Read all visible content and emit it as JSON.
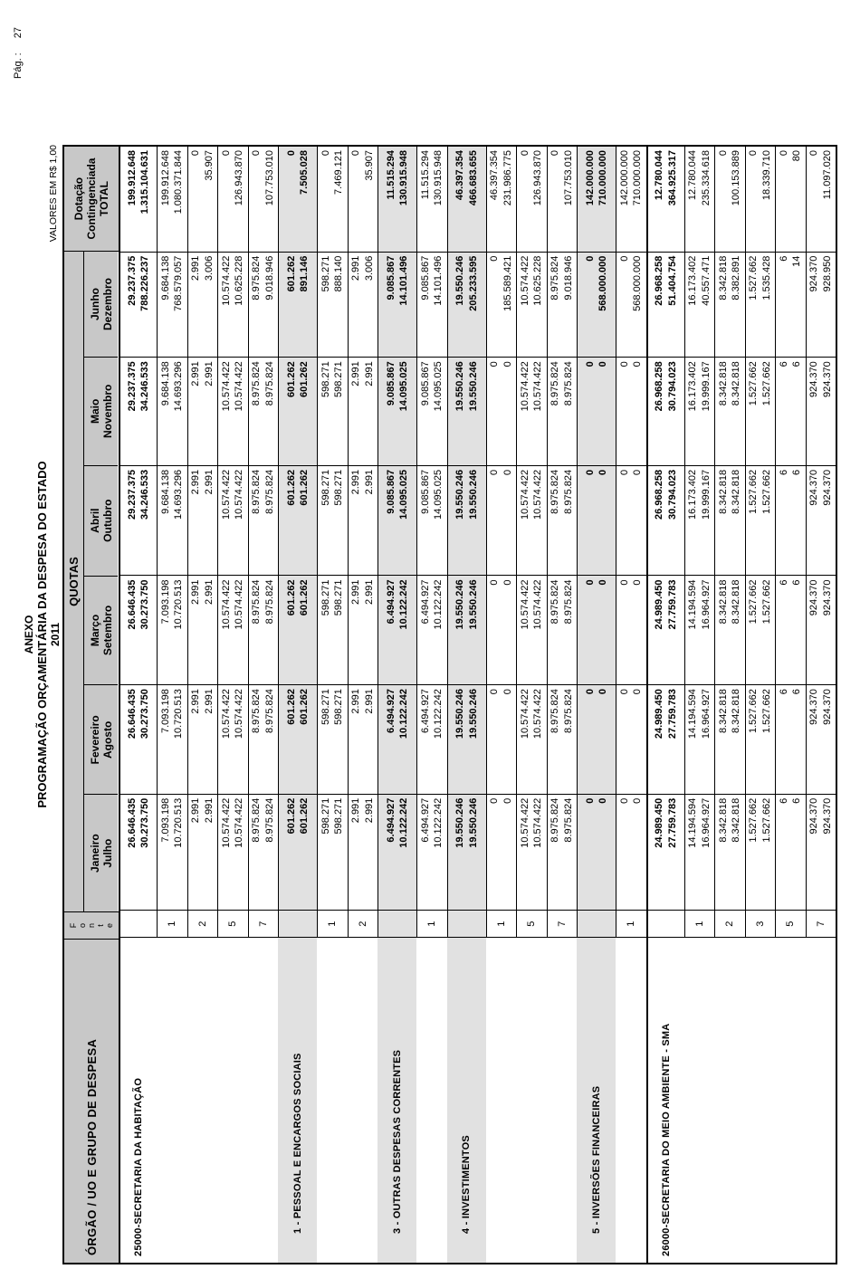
{
  "page": {
    "page_label": "Pág. :",
    "page_number": "27",
    "title1": "ANEXO",
    "title2": "PROGRAMAÇÃO ORÇAMENTÁRIA DA DESPESA DO ESTADO",
    "year": "2011",
    "values_note": "VALORES EM R$ 1,00"
  },
  "table": {
    "orgao_header": "ÓRGÃO / UO  E GRUPO DE DESPESA",
    "fonte_header_letters": [
      "F",
      "o",
      "n",
      "t",
      "e"
    ],
    "quotas_header": "QUOTAS",
    "dotacao_header_lines": [
      "Dotação",
      "Contingenciada",
      "TOTAL"
    ],
    "months": [
      [
        "Janeiro",
        "Julho"
      ],
      [
        "Fevereiro",
        "Agosto"
      ],
      [
        "Março",
        "Setembro"
      ],
      [
        "Abril",
        "Outubro"
      ],
      [
        "Maio",
        "Novembro"
      ],
      [
        "Junho",
        "Dezembro"
      ]
    ],
    "colors": {
      "header_bg": "#c8c8c8",
      "group_bg": "#e1e1e1"
    },
    "rows": [
      {
        "type": "org",
        "label": "25000-SECRETARIA DA HABITAÇÃO",
        "fonte": "",
        "cells": [
          [
            "26.646.435",
            "30.273.750"
          ],
          [
            "26.646.435",
            "30.273.750"
          ],
          [
            "26.646.435",
            "30.273.750"
          ],
          [
            "29.237.375",
            "34.246.533"
          ],
          [
            "29.237.375",
            "34.246.533"
          ],
          [
            "29.237.375",
            "788.226.237"
          ],
          [
            "199.912.648",
            "1.315.104.631"
          ]
        ]
      },
      {
        "type": "fonte",
        "label": "",
        "fonte": "1",
        "cells": [
          [
            "7.093.198",
            "10.720.513"
          ],
          [
            "7.093.198",
            "10.720.513"
          ],
          [
            "7.093.198",
            "10.720.513"
          ],
          [
            "9.684.138",
            "14.693.296"
          ],
          [
            "9.684.138",
            "14.693.296"
          ],
          [
            "9.684.138",
            "768.579.057"
          ],
          [
            "199.912.648",
            "1.080.371.844"
          ]
        ]
      },
      {
        "type": "fonte",
        "label": "",
        "fonte": "2",
        "cells": [
          [
            "2.991",
            "2.991"
          ],
          [
            "2.991",
            "2.991"
          ],
          [
            "2.991",
            "2.991"
          ],
          [
            "2.991",
            "2.991"
          ],
          [
            "2.991",
            "2.991"
          ],
          [
            "2.991",
            "3.006"
          ],
          [
            "0",
            "35.907"
          ]
        ]
      },
      {
        "type": "fonte",
        "label": "",
        "fonte": "5",
        "cells": [
          [
            "10.574.422",
            "10.574.422"
          ],
          [
            "10.574.422",
            "10.574.422"
          ],
          [
            "10.574.422",
            "10.574.422"
          ],
          [
            "10.574.422",
            "10.574.422"
          ],
          [
            "10.574.422",
            "10.574.422"
          ],
          [
            "10.574.422",
            "10.625.228"
          ],
          [
            "0",
            "126.943.870"
          ]
        ]
      },
      {
        "type": "fonte",
        "label": "",
        "fonte": "7",
        "cells": [
          [
            "8.975.824",
            "8.975.824"
          ],
          [
            "8.975.824",
            "8.975.824"
          ],
          [
            "8.975.824",
            "8.975.824"
          ],
          [
            "8.975.824",
            "8.975.824"
          ],
          [
            "8.975.824",
            "8.975.824"
          ],
          [
            "8.975.824",
            "9.018.946"
          ],
          [
            "0",
            "107.753.010"
          ]
        ]
      },
      {
        "type": "group",
        "label": "1 - PESSOAL E ENCARGOS SOCIAIS",
        "fonte": "",
        "cells": [
          [
            "601.262",
            "601.262"
          ],
          [
            "601.262",
            "601.262"
          ],
          [
            "601.262",
            "601.262"
          ],
          [
            "601.262",
            "601.262"
          ],
          [
            "601.262",
            "601.262"
          ],
          [
            "601.262",
            "891.146"
          ],
          [
            "0",
            "7.505.028"
          ]
        ]
      },
      {
        "type": "fonte",
        "label": "",
        "fonte": "1",
        "cells": [
          [
            "598.271",
            "598.271"
          ],
          [
            "598.271",
            "598.271"
          ],
          [
            "598.271",
            "598.271"
          ],
          [
            "598.271",
            "598.271"
          ],
          [
            "598.271",
            "598.271"
          ],
          [
            "598.271",
            "888.140"
          ],
          [
            "0",
            "7.469.121"
          ]
        ]
      },
      {
        "type": "fonte",
        "label": "",
        "fonte": "2",
        "cells": [
          [
            "2.991",
            "2.991"
          ],
          [
            "2.991",
            "2.991"
          ],
          [
            "2.991",
            "2.991"
          ],
          [
            "2.991",
            "2.991"
          ],
          [
            "2.991",
            "2.991"
          ],
          [
            "2.991",
            "3.006"
          ],
          [
            "0",
            "35.907"
          ]
        ]
      },
      {
        "type": "group",
        "label": "3 - OUTRAS DESPESAS CORRENTES",
        "fonte": "",
        "cells": [
          [
            "6.494.927",
            "10.122.242"
          ],
          [
            "6.494.927",
            "10.122.242"
          ],
          [
            "6.494.927",
            "10.122.242"
          ],
          [
            "9.085.867",
            "14.095.025"
          ],
          [
            "9.085.867",
            "14.095.025"
          ],
          [
            "9.085.867",
            "14.101.496"
          ],
          [
            "11.515.294",
            "130.915.948"
          ]
        ]
      },
      {
        "type": "fonte",
        "label": "",
        "fonte": "1",
        "cells": [
          [
            "6.494.927",
            "10.122.242"
          ],
          [
            "6.494.927",
            "10.122.242"
          ],
          [
            "6.494.927",
            "10.122.242"
          ],
          [
            "9.085.867",
            "14.095.025"
          ],
          [
            "9.085.867",
            "14.095.025"
          ],
          [
            "9.085.867",
            "14.101.496"
          ],
          [
            "11.515.294",
            "130.915.948"
          ]
        ]
      },
      {
        "type": "group",
        "label": "4 - INVESTIMENTOS",
        "fonte": "",
        "cells": [
          [
            "19.550.246",
            "19.550.246"
          ],
          [
            "19.550.246",
            "19.550.246"
          ],
          [
            "19.550.246",
            "19.550.246"
          ],
          [
            "19.550.246",
            "19.550.246"
          ],
          [
            "19.550.246",
            "19.550.246"
          ],
          [
            "19.550.246",
            "205.233.595"
          ],
          [
            "46.397.354",
            "466.683.655"
          ]
        ]
      },
      {
        "type": "fonte",
        "label": "",
        "fonte": "1",
        "cells": [
          [
            "0",
            "0"
          ],
          [
            "0",
            "0"
          ],
          [
            "0",
            "0"
          ],
          [
            "0",
            "0"
          ],
          [
            "0",
            "0"
          ],
          [
            "0",
            "185.589.421"
          ],
          [
            "46.397.354",
            "231.986.775"
          ]
        ]
      },
      {
        "type": "fonte",
        "label": "",
        "fonte": "5",
        "cells": [
          [
            "10.574.422",
            "10.574.422"
          ],
          [
            "10.574.422",
            "10.574.422"
          ],
          [
            "10.574.422",
            "10.574.422"
          ],
          [
            "10.574.422",
            "10.574.422"
          ],
          [
            "10.574.422",
            "10.574.422"
          ],
          [
            "10.574.422",
            "10.625.228"
          ],
          [
            "0",
            "126.943.870"
          ]
        ]
      },
      {
        "type": "fonte",
        "label": "",
        "fonte": "7",
        "cells": [
          [
            "8.975.824",
            "8.975.824"
          ],
          [
            "8.975.824",
            "8.975.824"
          ],
          [
            "8.975.824",
            "8.975.824"
          ],
          [
            "8.975.824",
            "8.975.824"
          ],
          [
            "8.975.824",
            "8.975.824"
          ],
          [
            "8.975.824",
            "9.018.946"
          ],
          [
            "0",
            "107.753.010"
          ]
        ]
      },
      {
        "type": "group",
        "label": "5 - INVERSÕES FINANCEIRAS",
        "fonte": "",
        "cells": [
          [
            "0",
            "0"
          ],
          [
            "0",
            "0"
          ],
          [
            "0",
            "0"
          ],
          [
            "0",
            "0"
          ],
          [
            "0",
            "0"
          ],
          [
            "0",
            "568.000.000"
          ],
          [
            "142.000.000",
            "710.000.000"
          ]
        ]
      },
      {
        "type": "fonte",
        "label": "",
        "fonte": "1",
        "cells": [
          [
            "0",
            "0"
          ],
          [
            "0",
            "0"
          ],
          [
            "0",
            "0"
          ],
          [
            "0",
            "0"
          ],
          [
            "0",
            "0"
          ],
          [
            "0",
            "568.000.000"
          ],
          [
            "142.000.000",
            "710.000.000"
          ]
        ]
      },
      {
        "type": "org",
        "label": "26000-SECRETARIA DO MEIO AMBIENTE - SMA",
        "fonte": "",
        "cells": [
          [
            "24.989.450",
            "27.759.783"
          ],
          [
            "24.989.450",
            "27.759.783"
          ],
          [
            "24.989.450",
            "27.759.783"
          ],
          [
            "26.968.258",
            "30.794.023"
          ],
          [
            "26.968.258",
            "30.794.023"
          ],
          [
            "26.968.258",
            "51.404.754"
          ],
          [
            "12.780.044",
            "364.925.317"
          ]
        ]
      },
      {
        "type": "fonte",
        "label": "",
        "fonte": "1",
        "cells": [
          [
            "14.194.594",
            "16.964.927"
          ],
          [
            "14.194.594",
            "16.964.927"
          ],
          [
            "14.194.594",
            "16.964.927"
          ],
          [
            "16.173.402",
            "19.999.167"
          ],
          [
            "16.173.402",
            "19.999.167"
          ],
          [
            "16.173.402",
            "40.557.471"
          ],
          [
            "12.780.044",
            "235.334.618"
          ]
        ]
      },
      {
        "type": "fonte",
        "label": "",
        "fonte": "2",
        "cells": [
          [
            "8.342.818",
            "8.342.818"
          ],
          [
            "8.342.818",
            "8.342.818"
          ],
          [
            "8.342.818",
            "8.342.818"
          ],
          [
            "8.342.818",
            "8.342.818"
          ],
          [
            "8.342.818",
            "8.342.818"
          ],
          [
            "8.342.818",
            "8.382.891"
          ],
          [
            "0",
            "100.153.889"
          ]
        ]
      },
      {
        "type": "fonte",
        "label": "",
        "fonte": "3",
        "cells": [
          [
            "1.527.662",
            "1.527.662"
          ],
          [
            "1.527.662",
            "1.527.662"
          ],
          [
            "1.527.662",
            "1.527.662"
          ],
          [
            "1.527.662",
            "1.527.662"
          ],
          [
            "1.527.662",
            "1.527.662"
          ],
          [
            "1.527.662",
            "1.535.428"
          ],
          [
            "0",
            "18.339.710"
          ]
        ]
      },
      {
        "type": "fonte",
        "label": "",
        "fonte": "5",
        "cells": [
          [
            "6",
            "6"
          ],
          [
            "6",
            "6"
          ],
          [
            "6",
            "6"
          ],
          [
            "6",
            "6"
          ],
          [
            "6",
            "6"
          ],
          [
            "6",
            "14"
          ],
          [
            "0",
            "80"
          ]
        ]
      },
      {
        "type": "fonte",
        "label": "",
        "fonte": "7",
        "cells": [
          [
            "924.370",
            "924.370"
          ],
          [
            "924.370",
            "924.370"
          ],
          [
            "924.370",
            "924.370"
          ],
          [
            "924.370",
            "924.370"
          ],
          [
            "924.370",
            "924.370"
          ],
          [
            "924.370",
            "928.950"
          ],
          [
            "0",
            "11.097.020"
          ]
        ]
      }
    ]
  }
}
